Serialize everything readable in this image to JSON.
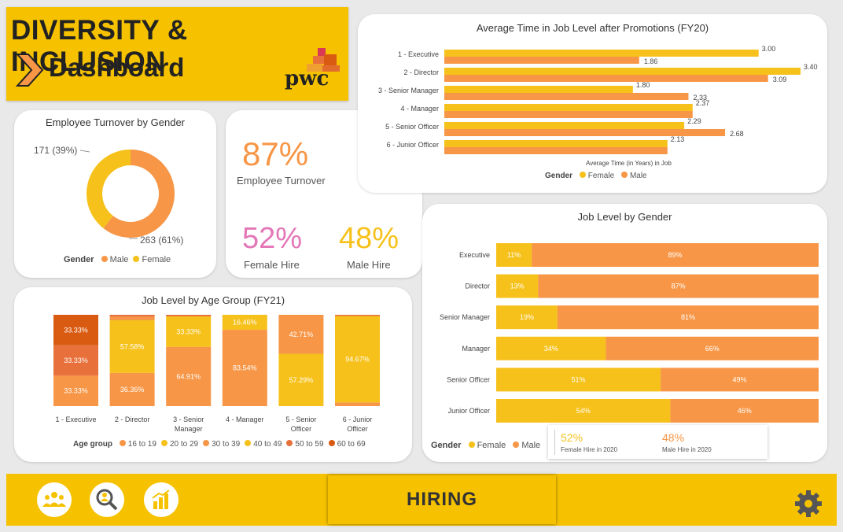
{
  "colors": {
    "female": "#f6c11a",
    "male": "#f79646",
    "header_bg": "#f6c200",
    "pink": "#e377b8",
    "footer_bg": "#f6c200"
  },
  "header": {
    "line1": "DIVERSITY & INCLUSION",
    "line2": "Dashboard",
    "logo_text": "pwc"
  },
  "turnover_donut": {
    "title": "Employee Turnover by Gender",
    "label_female": "171 (39%)",
    "label_male": "263 (61%)",
    "legend_title": "Gender",
    "legend_male": "Male",
    "legend_female": "Female"
  },
  "kpis": {
    "turnover_value": "87%",
    "turnover_label": "Employee Turnover",
    "female_hire_value": "52%",
    "female_hire_label": "Female Hire",
    "male_hire_value": "48%",
    "male_hire_label": "Male Hire"
  },
  "avg_time": {
    "title": "Average Time in Job Level after Promotions (FY20)",
    "xlabel": "Average Time (in Years) in Job",
    "legend_title": "Gender",
    "legend_female": "Female",
    "legend_male": "Male"
  },
  "job_gender": {
    "title": "Job Level by Gender",
    "legend_title": "Gender",
    "legend_female": "Female",
    "legend_male": "Male",
    "mini_female_value": "52%",
    "mini_female_label": "Female Hire in 2020",
    "mini_male_value": "48%",
    "mini_male_label": "Male Hire in 2020"
  },
  "age_group": {
    "title": "Job Level by Age Group (FY21)",
    "legend_title": "Age group",
    "legend_items": [
      "16 to 19",
      "20 to 29",
      "30 to 39",
      "40 to 49",
      "50 to 59",
      "60 to 69"
    ],
    "legend_colors": [
      "#f79646",
      "#f6c11a",
      "#f79646",
      "#f6c11a",
      "#e8703a",
      "#d95a11"
    ]
  },
  "footer": {
    "hiring_label": "HIRING",
    "icons": [
      "people-icon",
      "search-people-icon",
      "chart-icon",
      "gear-icon"
    ]
  },
  "chart_data": [
    {
      "type": "pie",
      "title": "Employee Turnover by Gender",
      "categories": [
        "Male",
        "Female"
      ],
      "values": [
        263,
        171
      ],
      "percent": [
        61,
        39
      ]
    },
    {
      "type": "bar",
      "orientation": "horizontal",
      "title": "Average Time in Job Level after Promotions (FY20)",
      "categories": [
        "1 - Executive",
        "2 - Director",
        "3 - Senior Manager",
        "4 - Manager",
        "5 - Senior Officer",
        "6 - Junior Officer"
      ],
      "series": [
        {
          "name": "Female",
          "values": [
            3.0,
            3.4,
            1.8,
            2.37,
            2.29,
            2.13
          ]
        },
        {
          "name": "Male",
          "values": [
            1.86,
            3.09,
            2.33,
            2.37,
            2.68,
            2.13
          ]
        }
      ],
      "data_labels": [
        [
          "3.00",
          "1.86"
        ],
        [
          "3.40",
          "3.09"
        ],
        [
          "1.80",
          "2.33"
        ],
        [
          "2.37",
          ""
        ],
        [
          "2.29",
          "2.68"
        ],
        [
          "2.13",
          ""
        ]
      ],
      "xlabel": "Average Time (in Years) in Job",
      "xlim": [
        0,
        3.5
      ]
    },
    {
      "type": "bar",
      "orientation": "horizontal",
      "stacked": "100%",
      "title": "Job Level by Gender",
      "categories": [
        "Executive",
        "Director",
        "Senior Manager",
        "Manager",
        "Senior Officer",
        "Junior Officer"
      ],
      "series": [
        {
          "name": "Female",
          "values": [
            11,
            13,
            19,
            34,
            51,
            54
          ]
        },
        {
          "name": "Male",
          "values": [
            89,
            87,
            81,
            66,
            49,
            46
          ]
        }
      ]
    },
    {
      "type": "bar",
      "stacked": "100%",
      "title": "Job Level by Age Group (FY21)",
      "categories": [
        "1 - Executive",
        "2 - Director",
        "3 - Senior Manager",
        "4 - Manager",
        "5 - Senior Officer",
        "6 - Junior Officer"
      ],
      "segments": [
        [
          {
            "v": 33.33,
            "c": "#f79646",
            "label": "33.33%"
          },
          {
            "v": 33.33,
            "c": "#e8703a",
            "label": "33.33%"
          },
          {
            "v": 33.33,
            "c": "#d95a11",
            "label": "33.33%"
          }
        ],
        [
          {
            "v": 36.36,
            "c": "#f79646",
            "label": "36.36%"
          },
          {
            "v": 57.58,
            "c": "#f6c11a",
            "label": "57.58%"
          },
          {
            "v": 4.0,
            "c": "#f79646",
            "label": ""
          },
          {
            "v": 2.06,
            "c": "#e8703a",
            "label": ""
          }
        ],
        [
          {
            "v": 64.91,
            "c": "#f79646",
            "label": "64.91%"
          },
          {
            "v": 33.33,
            "c": "#f6c11a",
            "label": "33.33%"
          },
          {
            "v": 1.76,
            "c": "#e8703a",
            "label": ""
          }
        ],
        [
          {
            "v": 83.54,
            "c": "#f79646",
            "label": "83.54%"
          },
          {
            "v": 16.46,
            "c": "#f6c11a",
            "label": "16.46%"
          }
        ],
        [
          {
            "v": 57.29,
            "c": "#f6c11a",
            "label": "57.29%"
          },
          {
            "v": 42.71,
            "c": "#f79646",
            "label": "42.71%"
          }
        ],
        [
          {
            "v": 4.0,
            "c": "#f79646",
            "label": ""
          },
          {
            "v": 94.67,
            "c": "#f6c11a",
            "label": "94.67%"
          },
          {
            "v": 1.33,
            "c": "#e8703a",
            "label": ""
          }
        ]
      ],
      "category_labels": [
        [
          "1 - Executive"
        ],
        [
          "2 - Director"
        ],
        [
          "3 - Senior",
          "Manager"
        ],
        [
          "4 - Manager"
        ],
        [
          "5 - Senior",
          "Officer"
        ],
        [
          "6 - Junior",
          "Officer"
        ]
      ]
    }
  ]
}
